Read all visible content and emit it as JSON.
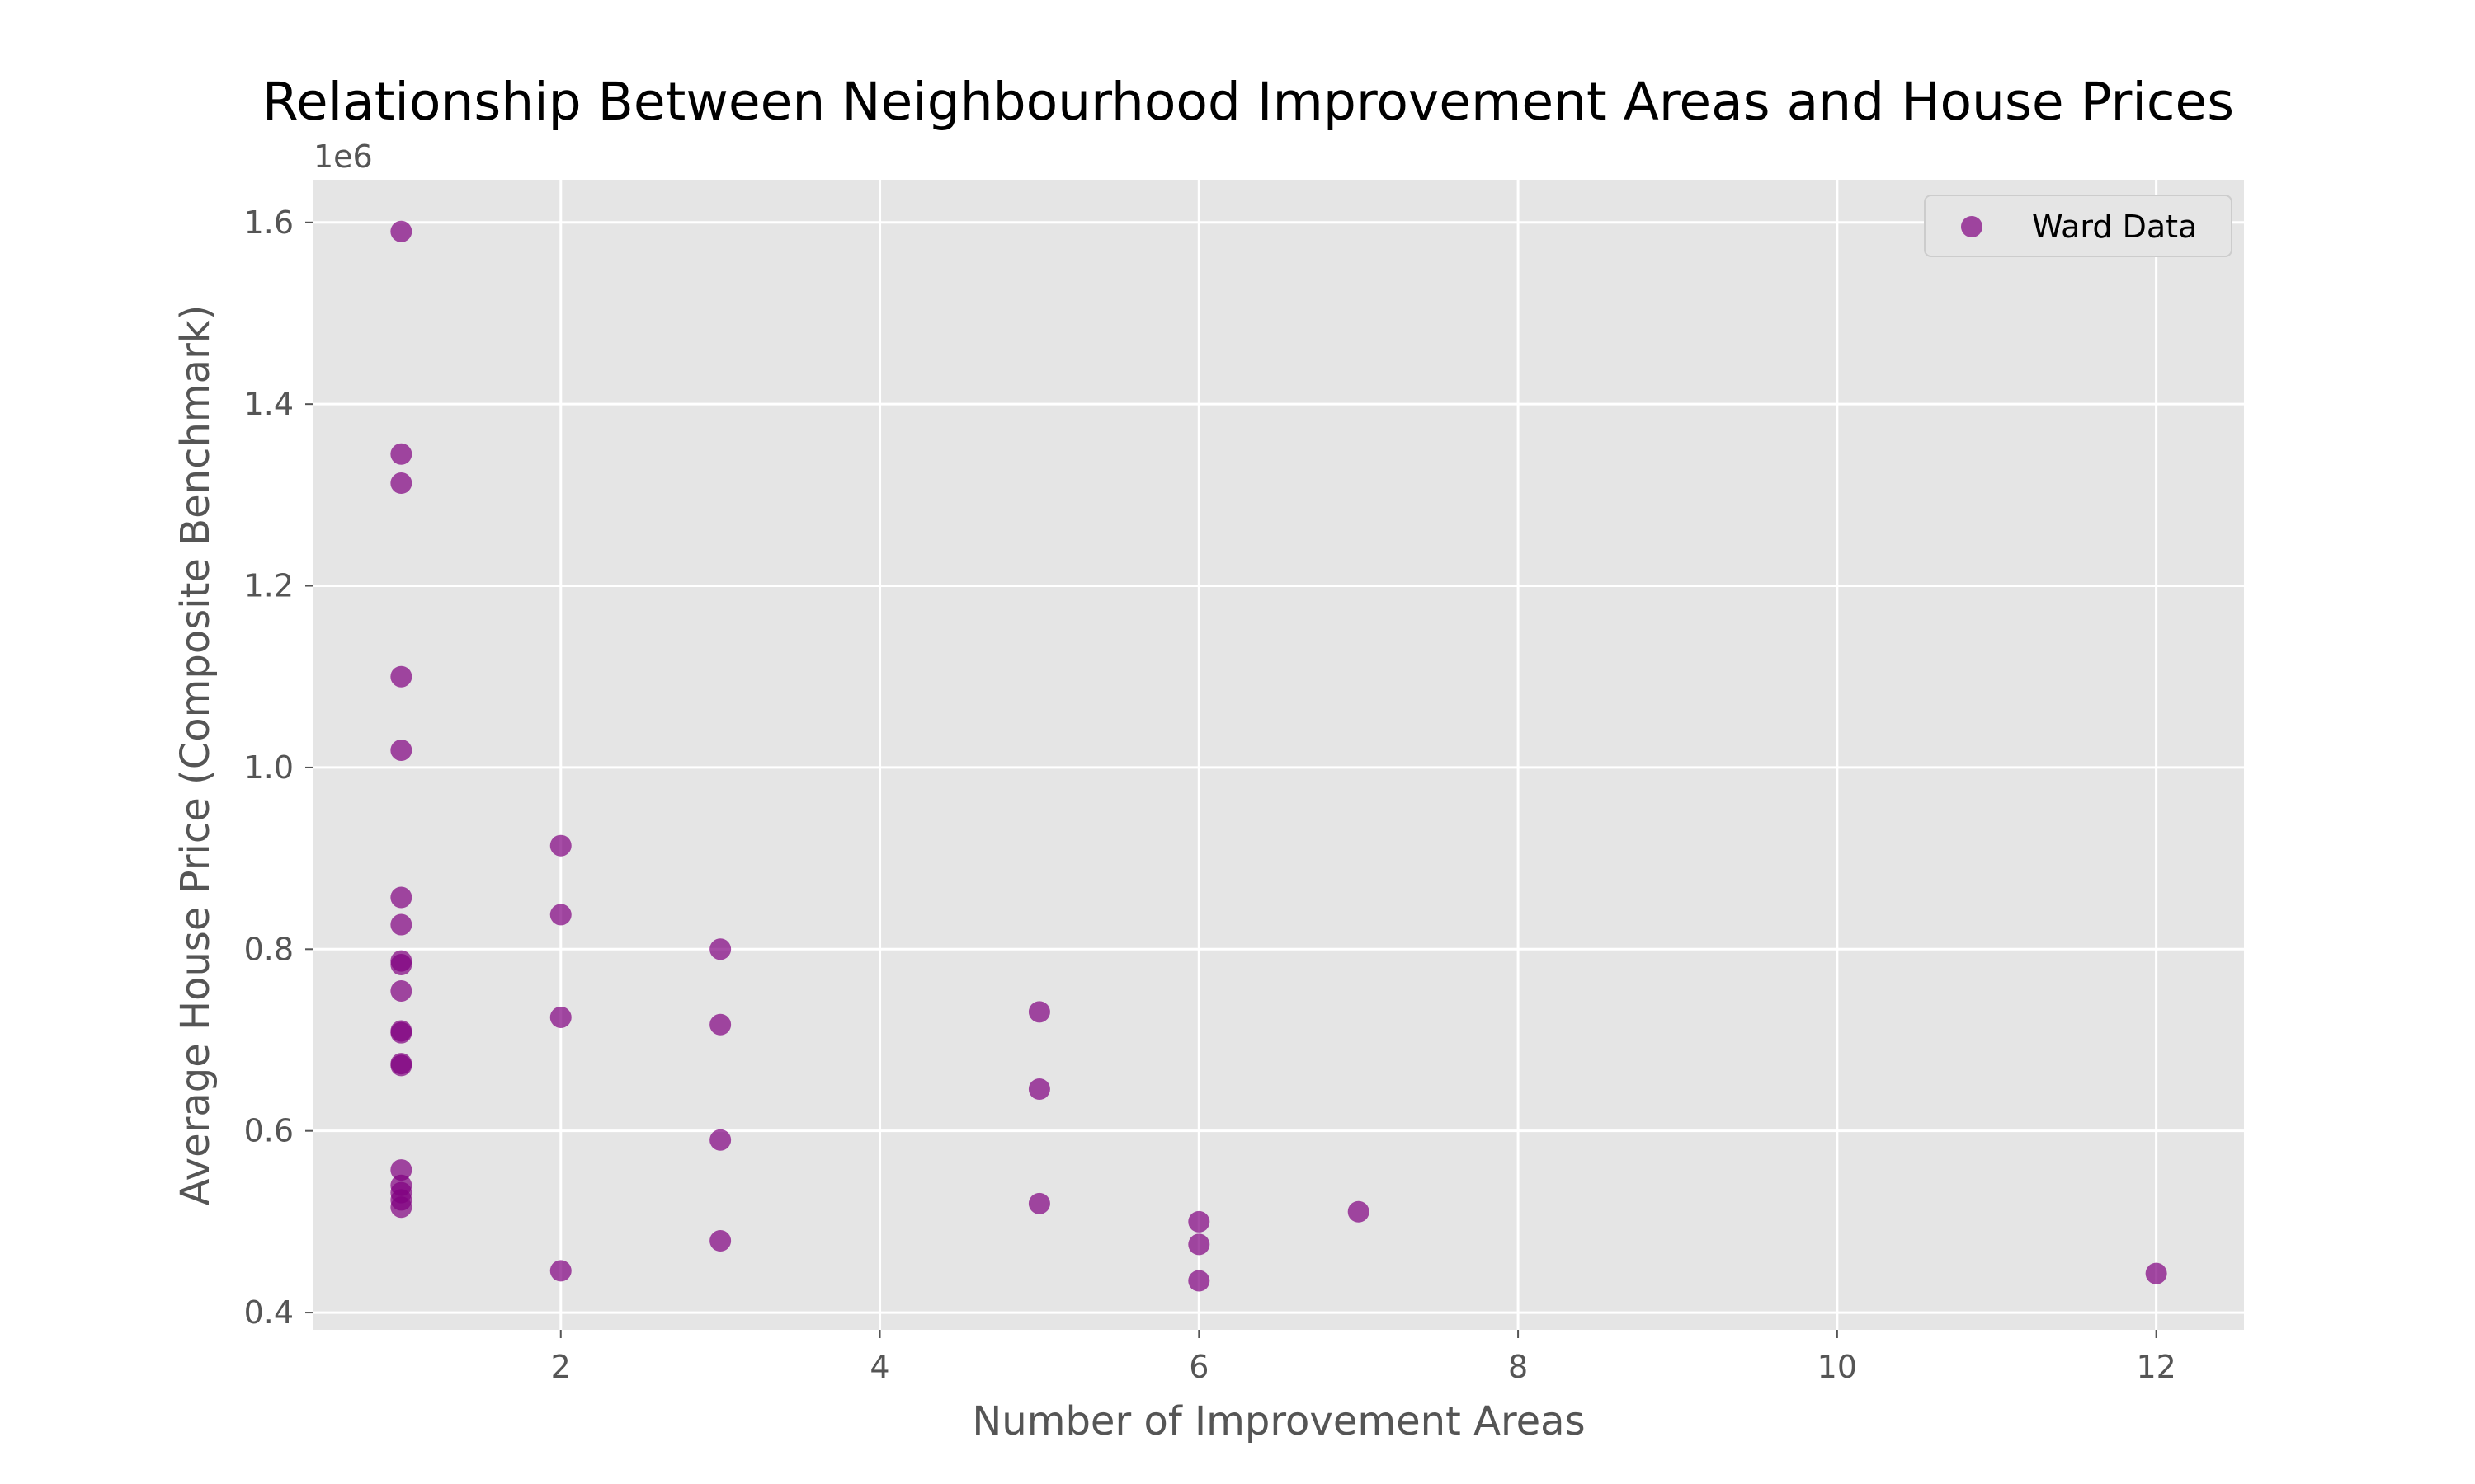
{
  "chart_data": {
    "type": "scatter",
    "title": "Relationship Between Neighbourhood Improvement Areas and House Prices",
    "xlabel": "Number of Improvement Areas",
    "ylabel": "Average House Price (Composite Benchmark)",
    "y_offset_label": "1e6",
    "xlim": [
      0.45,
      12.55
    ],
    "ylim": [
      0.381,
      1.647
    ],
    "x_ticks": [
      2,
      4,
      6,
      8,
      10,
      12
    ],
    "x_tick_labels": [
      "2",
      "4",
      "6",
      "8",
      "10",
      "12"
    ],
    "y_ticks": [
      0.4,
      0.6,
      0.8,
      1.0,
      1.2,
      1.4,
      1.6
    ],
    "y_tick_labels": [
      "0.4",
      "0.6",
      "0.8",
      "1.0",
      "1.2",
      "1.4",
      "1.6"
    ],
    "grid": true,
    "legend_position": "top-right",
    "series": [
      {
        "name": "Ward Data",
        "color": "#800080",
        "points": [
          {
            "x": 1,
            "y": 1.59
          },
          {
            "x": 1,
            "y": 1.345
          },
          {
            "x": 1,
            "y": 1.313
          },
          {
            "x": 1,
            "y": 1.1
          },
          {
            "x": 1,
            "y": 1.019
          },
          {
            "x": 1,
            "y": 0.857
          },
          {
            "x": 1,
            "y": 0.827
          },
          {
            "x": 1,
            "y": 0.787
          },
          {
            "x": 1,
            "y": 0.783
          },
          {
            "x": 1,
            "y": 0.754
          },
          {
            "x": 1,
            "y": 0.71
          },
          {
            "x": 1,
            "y": 0.708
          },
          {
            "x": 1,
            "y": 0.674
          },
          {
            "x": 1,
            "y": 0.672
          },
          {
            "x": 1,
            "y": 0.557
          },
          {
            "x": 1,
            "y": 0.54
          },
          {
            "x": 1,
            "y": 0.532
          },
          {
            "x": 1,
            "y": 0.524
          },
          {
            "x": 1,
            "y": 0.516
          },
          {
            "x": 2,
            "y": 0.914
          },
          {
            "x": 2,
            "y": 0.838
          },
          {
            "x": 2,
            "y": 0.725
          },
          {
            "x": 2,
            "y": 0.446
          },
          {
            "x": 3,
            "y": 0.8
          },
          {
            "x": 3,
            "y": 0.717
          },
          {
            "x": 3,
            "y": 0.59
          },
          {
            "x": 3,
            "y": 0.479
          },
          {
            "x": 5,
            "y": 0.731
          },
          {
            "x": 5,
            "y": 0.646
          },
          {
            "x": 5,
            "y": 0.52
          },
          {
            "x": 6,
            "y": 0.5
          },
          {
            "x": 6,
            "y": 0.475
          },
          {
            "x": 6,
            "y": 0.435
          },
          {
            "x": 7,
            "y": 0.511
          },
          {
            "x": 12,
            "y": 0.443
          }
        ]
      }
    ]
  }
}
